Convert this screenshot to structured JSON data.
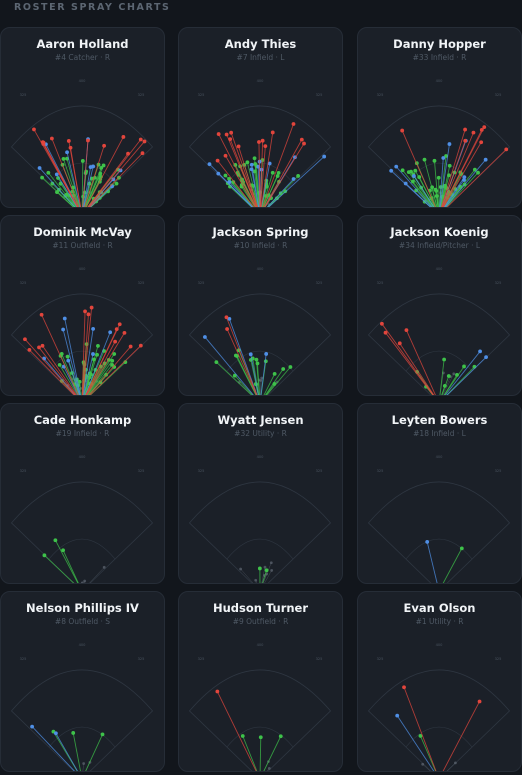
{
  "section_title": "ROSTER SPRAY CHARTS",
  "colors": {
    "background": "#12161c",
    "card": "#1b2028",
    "field_line": "#2e3641",
    "distance_label": "#4a5460",
    "ground_ball": "#3ec24a",
    "line_drive": "#4f8fe6",
    "fly_ball": "#e2453c",
    "popup": "#6a737e"
  },
  "field_distance_labels": {
    "left": "325",
    "center": "400",
    "right": "325"
  },
  "players": [
    {
      "name": "Aaron Holland",
      "meta": "#4 Catcher · R",
      "spray": {
        "ground_ball": 42,
        "line_drive": 10,
        "fly_ball": 14,
        "popup": 6
      }
    },
    {
      "name": "Andy Thies",
      "meta": "#7 Infield · L",
      "spray": {
        "ground_ball": 40,
        "line_drive": 12,
        "fly_ball": 14,
        "popup": 4
      }
    },
    {
      "name": "Danny Hopper",
      "meta": "#33 Infield · R",
      "spray": {
        "ground_ball": 44,
        "line_drive": 10,
        "fly_ball": 8,
        "popup": 6
      }
    },
    {
      "name": "Dominik McVay",
      "meta": "#11 Outfield · R",
      "spray": {
        "ground_ball": 38,
        "line_drive": 8,
        "fly_ball": 14,
        "popup": 8
      }
    },
    {
      "name": "Jackson Spring",
      "meta": "#10 Infield · R",
      "spray": {
        "ground_ball": 16,
        "line_drive": 4,
        "fly_ball": 2,
        "popup": 6
      }
    },
    {
      "name": "Jackson Koenig",
      "meta": "#34 Infield/Pitcher · L",
      "spray": {
        "ground_ball": 8,
        "line_drive": 2,
        "fly_ball": 4,
        "popup": 3
      }
    },
    {
      "name": "Cade Honkamp",
      "meta": "#19 Infield · R",
      "spray": {
        "ground_ball": 3,
        "line_drive": 0,
        "fly_ball": 0,
        "popup": 3
      }
    },
    {
      "name": "Wyatt Jensen",
      "meta": "#32 Utility · R",
      "spray": {
        "ground_ball": 2,
        "line_drive": 0,
        "fly_ball": 0,
        "popup": 8
      }
    },
    {
      "name": "Leyten Bowers",
      "meta": "#18 Infield · L",
      "spray": {
        "ground_ball": 1,
        "line_drive": 1,
        "fly_ball": 0,
        "popup": 0
      }
    },
    {
      "name": "Nelson Phillips IV",
      "meta": "#8 Outfield · S",
      "spray": {
        "ground_ball": 3,
        "line_drive": 2,
        "fly_ball": 0,
        "popup": 3
      }
    },
    {
      "name": "Hudson Turner",
      "meta": "#9 Outfield · R",
      "spray": {
        "ground_ball": 3,
        "line_drive": 0,
        "fly_ball": 1,
        "popup": 2
      }
    },
    {
      "name": "Evan Olson",
      "meta": "#1 Utility · R",
      "spray": {
        "ground_ball": 1,
        "line_drive": 1,
        "fly_ball": 2,
        "popup": 2
      }
    }
  ]
}
